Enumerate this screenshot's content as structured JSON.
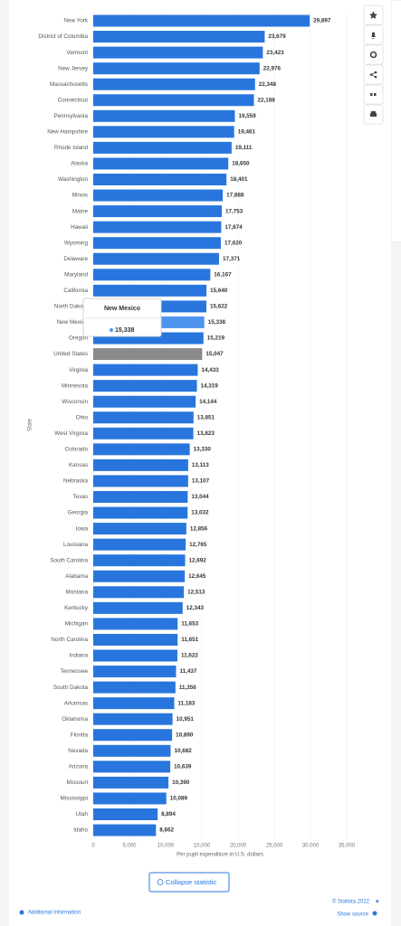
{
  "chart_data": {
    "type": "bar",
    "orientation": "horizontal",
    "categories": [
      "New York",
      "District of Columbia",
      "Vermont",
      "New Jersey",
      "Massachusetts",
      "Connecticut",
      "Pennsylvania",
      "New Hampshire",
      "Rhode Island",
      "Alaska",
      "Washington",
      "Illinois",
      "Maine",
      "Hawaii",
      "Wyoming",
      "Delaware",
      "Maryland",
      "California",
      "North Dakota",
      "New Mexico",
      "Oregon",
      "United States",
      "Virginia",
      "Minnesota",
      "Wisconsin",
      "Ohio",
      "West Virginia",
      "Colorado",
      "Kansas",
      "Nebraska",
      "Texas",
      "Georgia",
      "Iowa",
      "Louisiana",
      "South Carolina",
      "Alabama",
      "Montana",
      "Kentucky",
      "Michigan",
      "North Carolina",
      "Indiana",
      "Tennessee",
      "South Dakota",
      "Arkansas",
      "Oklahoma",
      "Florida",
      "Nevada",
      "Arizona",
      "Missouri",
      "Mississippi",
      "Utah",
      "Idaho"
    ],
    "values": [
      29897,
      23679,
      23423,
      22976,
      22348,
      22188,
      19559,
      19461,
      19111,
      18650,
      18401,
      17888,
      17753,
      17674,
      17620,
      17371,
      16167,
      15640,
      15622,
      15338,
      15219,
      15047,
      14433,
      14319,
      14144,
      13851,
      13823,
      13330,
      13113,
      13107,
      13044,
      13032,
      12856,
      12765,
      12692,
      12645,
      12513,
      12343,
      11653,
      11651,
      11622,
      11437,
      11356,
      11183,
      10951,
      10890,
      10682,
      10639,
      10390,
      10089,
      8894,
      8662
    ],
    "value_labels": [
      "29,897",
      "23,679",
      "23,423",
      "22,976",
      "22,348",
      "22,188",
      "19,559",
      "19,461",
      "19,111",
      "18,650",
      "18,401",
      "17,888",
      "17,753",
      "17,674",
      "17,620",
      "17,371",
      "16,167",
      "15,640",
      "15,622",
      "15,338",
      "15,219",
      "15,047",
      "14,433",
      "14,319",
      "14,144",
      "13,851",
      "13,823",
      "13,330",
      "13,113",
      "13,107",
      "13,044",
      "13,032",
      "12,856",
      "12,765",
      "12,692",
      "12,645",
      "12,513",
      "12,343",
      "11,653",
      "11,651",
      "11,622",
      "11,437",
      "11,356",
      "11,183",
      "10,951",
      "10,890",
      "10,682",
      "10,639",
      "10,390",
      "10,089",
      "8,894",
      "8,662"
    ],
    "colors": [
      "#2876dd",
      "#2876dd",
      "#2876dd",
      "#2876dd",
      "#2876dd",
      "#2876dd",
      "#2876dd",
      "#2876dd",
      "#2876dd",
      "#2876dd",
      "#2876dd",
      "#2876dd",
      "#2876dd",
      "#2876dd",
      "#2876dd",
      "#2876dd",
      "#2876dd",
      "#2876dd",
      "#2876dd",
      "#4f95f0",
      "#2876dd",
      "#8a8a8a",
      "#2876dd",
      "#2876dd",
      "#2876dd",
      "#2876dd",
      "#2876dd",
      "#2876dd",
      "#2876dd",
      "#2876dd",
      "#2876dd",
      "#2876dd",
      "#2876dd",
      "#2876dd",
      "#2876dd",
      "#2876dd",
      "#2876dd",
      "#2876dd",
      "#2876dd",
      "#2876dd",
      "#2876dd",
      "#2876dd",
      "#2876dd",
      "#2876dd",
      "#2876dd",
      "#2876dd",
      "#2876dd",
      "#2876dd",
      "#2876dd",
      "#2876dd",
      "#2876dd",
      "#2876dd"
    ],
    "xlim": [
      0,
      35000
    ],
    "xticks": [
      0,
      {
        "value": 5000,
        "label": "5,000"
      },
      {
        "value": 10000,
        "label": "10,000"
      },
      {
        "value": 15000,
        "label": "15,000"
      },
      {
        "value": 20000,
        "label": "20,000"
      },
      {
        "value": 25000,
        "label": "25,000"
      },
      {
        "value": 30000,
        "label": "30,000"
      },
      {
        "value": 35000,
        "label": "35,000"
      }
    ],
    "grid": true,
    "x_label": "Per pupil expenditure in U.S. dollars",
    "y_label": "State"
  },
  "footer": {
    "button": "Collapse statistic",
    "copyright": "© Statista 2022",
    "additional_info": "Additional Information",
    "show_source": "Show source"
  }
}
